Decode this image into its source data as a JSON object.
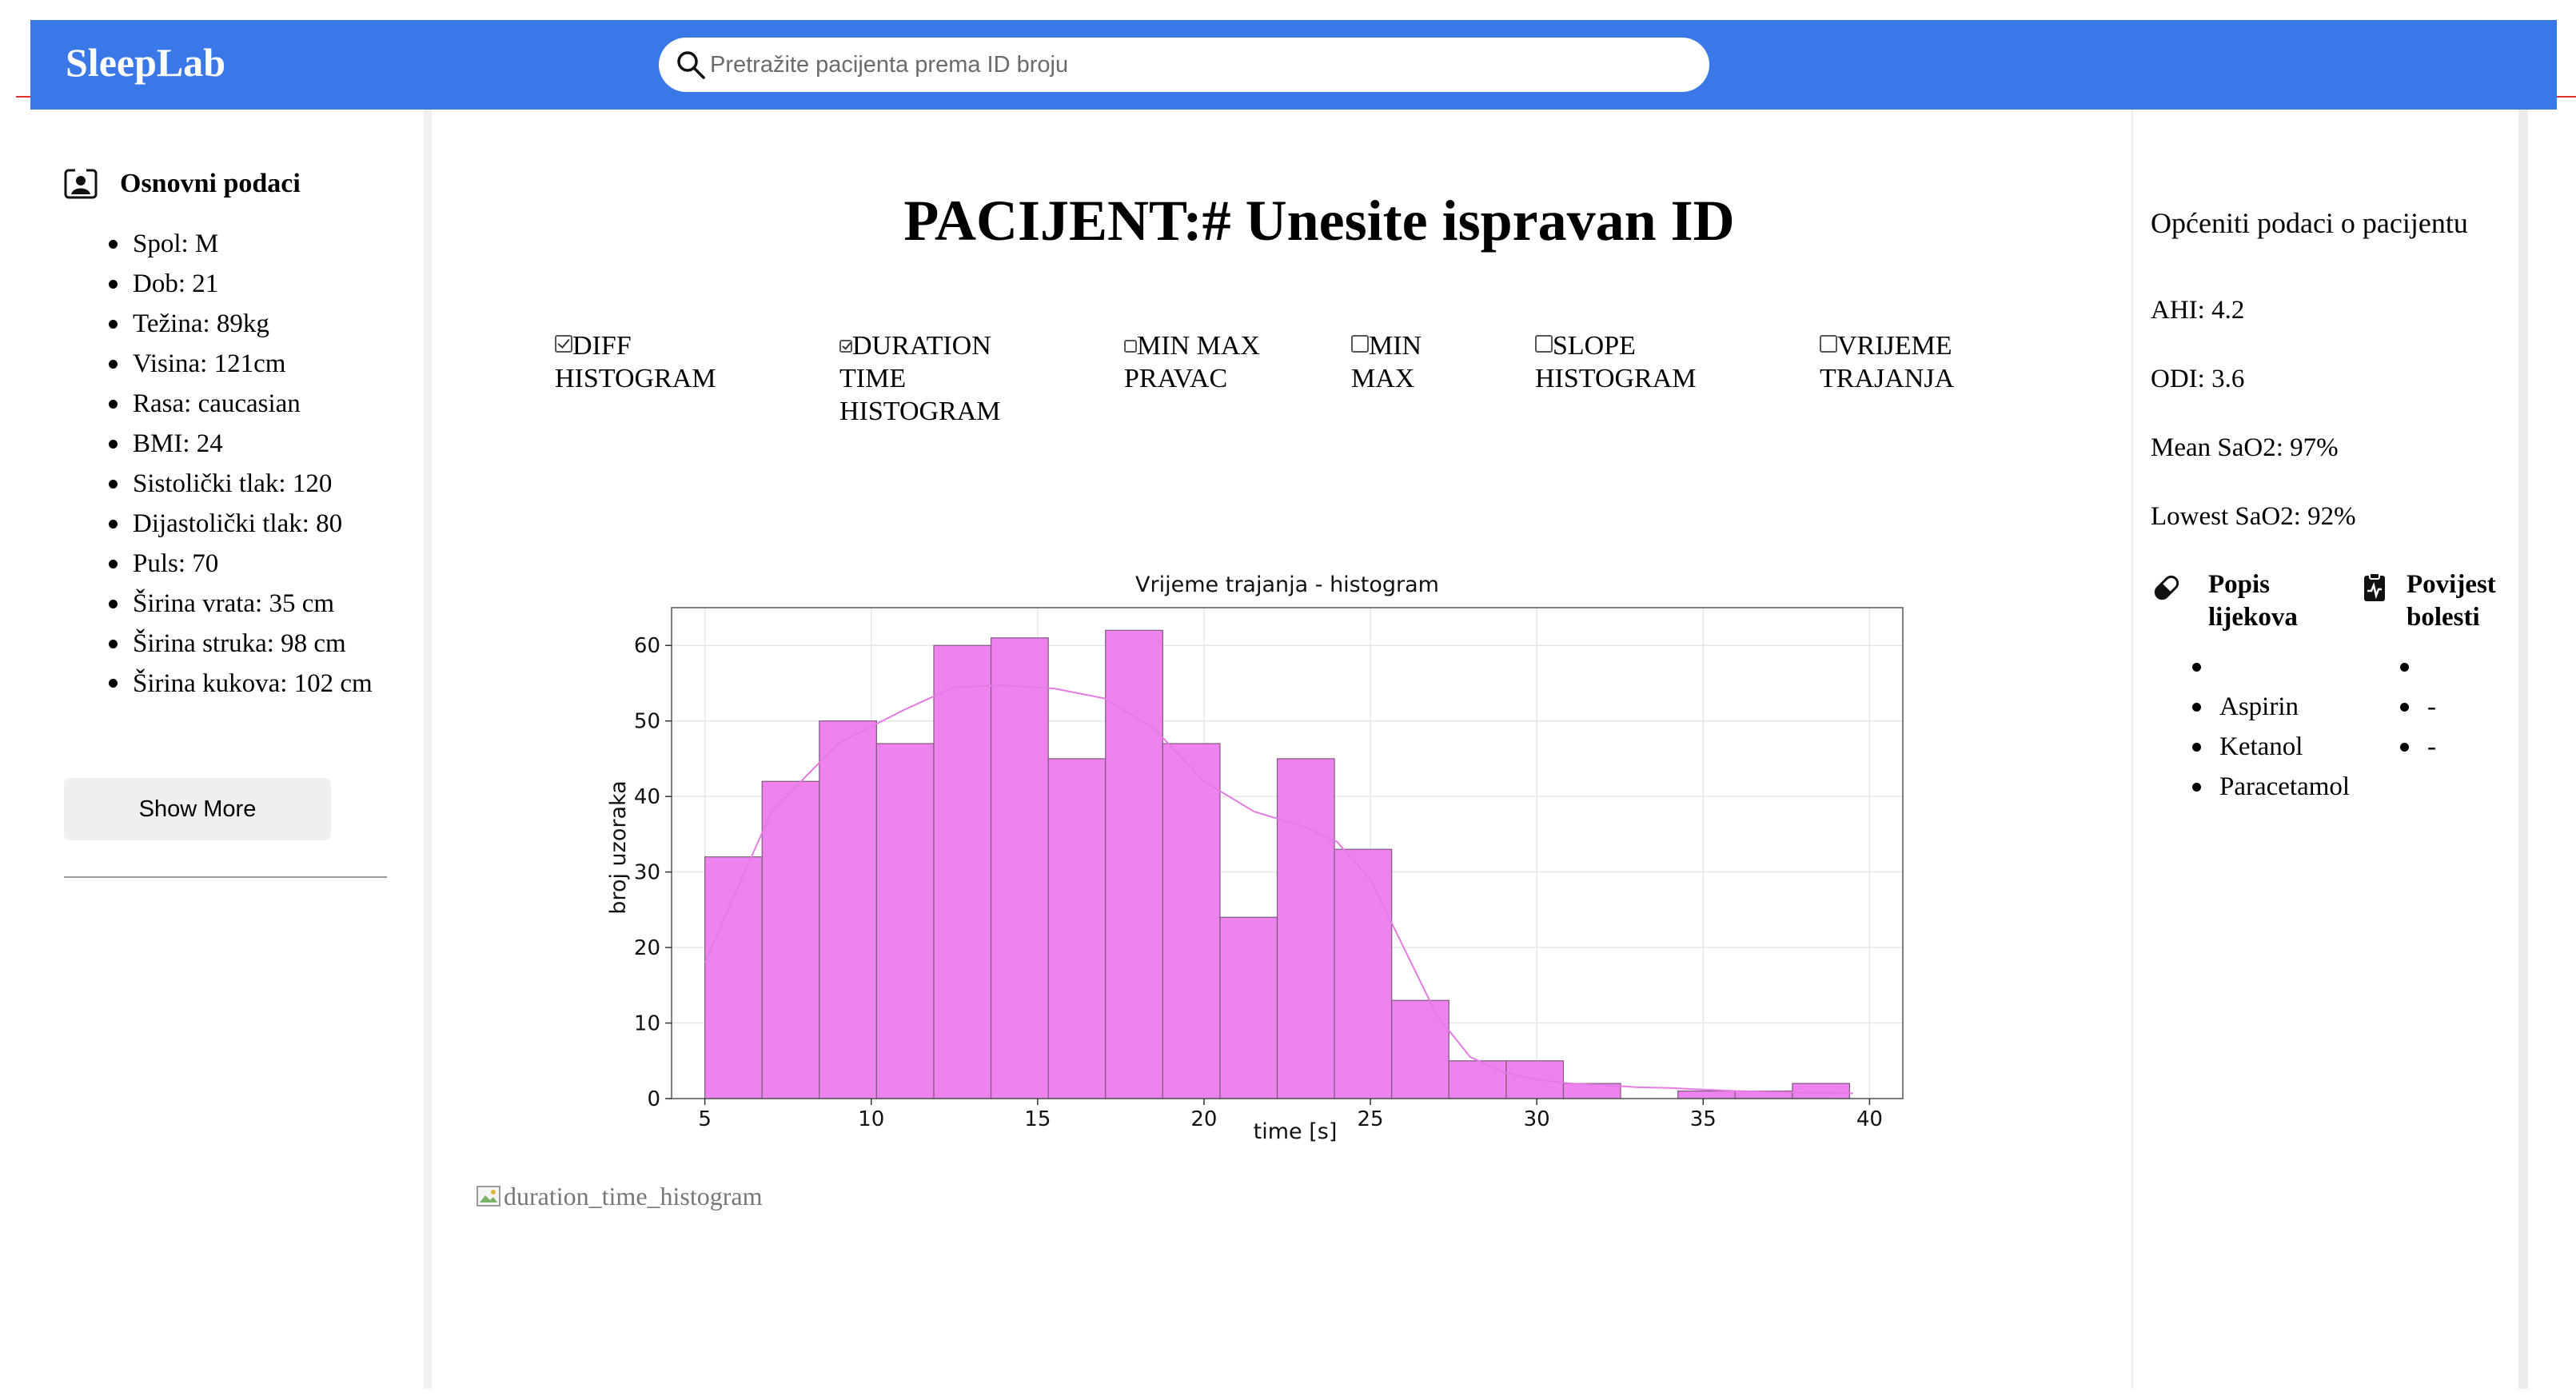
{
  "header": {
    "brand": "SleepLab",
    "search_placeholder": "Pretražite pacijenta prema ID broju",
    "search_value": ""
  },
  "colors": {
    "topbar": "#3b78e7",
    "bars": "#ee82ee",
    "accent_line": "#e0312b"
  },
  "icons": {
    "search": "magnifier",
    "basic_info": "user-card",
    "medications": "pill",
    "history": "clipboard"
  },
  "basic_info": {
    "title": "Osnovni podaci",
    "items": [
      "Spol: M",
      "Dob: 21",
      "Težina: 89kg",
      "Visina: 121cm",
      "Rasa: caucasian",
      "BMI: 24",
      "Sistolički tlak: 120",
      "Dijastolički tlak: 80",
      "Puls: 70",
      "Širina vrata: 35 cm",
      "Širina struka: 98 cm",
      "Širina kukova: 102 cm"
    ],
    "show_more_label": "Show More"
  },
  "main": {
    "title": "PACIJENT:# Unesite ispravan ID",
    "checkboxes": [
      {
        "label": "DIFF HISTOGRAM",
        "checked": true
      },
      {
        "label": "DURATION TIME HISTOGRAM",
        "checked": true
      },
      {
        "label": "MIN MAX PRAVAC",
        "checked": false
      },
      {
        "label": "MIN MAX",
        "checked": false
      },
      {
        "label": "SLOPE HISTOGRAM",
        "checked": false
      },
      {
        "label": "VRIJEME TRAJANJA",
        "checked": false
      }
    ],
    "broken_image_alt": "duration_time_histogram"
  },
  "chart_data": {
    "type": "bar",
    "title": "Vrijeme trajanja - histogram",
    "xlabel": "time [s]",
    "ylabel": "broj uzoraka",
    "xlim": [
      4.0,
      41.0
    ],
    "ylim": [
      0,
      65
    ],
    "xticks": [
      5,
      10,
      15,
      20,
      25,
      30,
      35,
      40
    ],
    "yticks": [
      0,
      10,
      20,
      30,
      40,
      50,
      60
    ],
    "grid": true,
    "bin_edges": [
      5.0,
      6.72,
      8.44,
      10.16,
      11.88,
      13.6,
      15.32,
      17.04,
      18.76,
      20.48,
      22.2,
      23.92,
      25.64,
      27.36,
      29.08,
      30.8,
      32.52,
      34.24,
      35.96,
      37.68,
      39.4
    ],
    "values": [
      32,
      42,
      50,
      47,
      60,
      61,
      45,
      62,
      47,
      24,
      45,
      33,
      13,
      5,
      5,
      2,
      0,
      1,
      1,
      2
    ],
    "kde": {
      "x": [
        5.0,
        7.0,
        9.0,
        11.0,
        12.5,
        14.0,
        15.5,
        17.0,
        18.5,
        20.0,
        21.5,
        23.0,
        24.0,
        25.0,
        26.0,
        27.0,
        28.0,
        29.0,
        30.0,
        31.0,
        32.0,
        33.0,
        34.0,
        35.0,
        36.0,
        37.0,
        38.0,
        39.0,
        39.5
      ],
      "y": [
        18,
        38,
        47,
        51.5,
        54.5,
        54.7,
        54.3,
        53,
        49,
        42,
        38,
        36,
        34,
        29,
        20,
        11,
        5.5,
        3.5,
        2.5,
        2,
        1.8,
        1.5,
        1.4,
        1.2,
        1.0,
        0.9,
        0.8,
        0.7,
        0.7
      ]
    }
  },
  "right_panel": {
    "title": "Općeniti podaci o pacijentu",
    "ahi": "AHI: 4.2",
    "odi": "ODI: 3.6",
    "mean_sao2": "Mean SaO2: 97%",
    "lowest_sao2": "Lowest SaO2: 92%",
    "medications": {
      "title": "Popis lijekova",
      "items": [
        "",
        "Aspirin",
        "Ketanol",
        "Paracetamol"
      ]
    },
    "history": {
      "title": "Povijest bolesti",
      "items": [
        "",
        "-",
        "-"
      ]
    }
  }
}
